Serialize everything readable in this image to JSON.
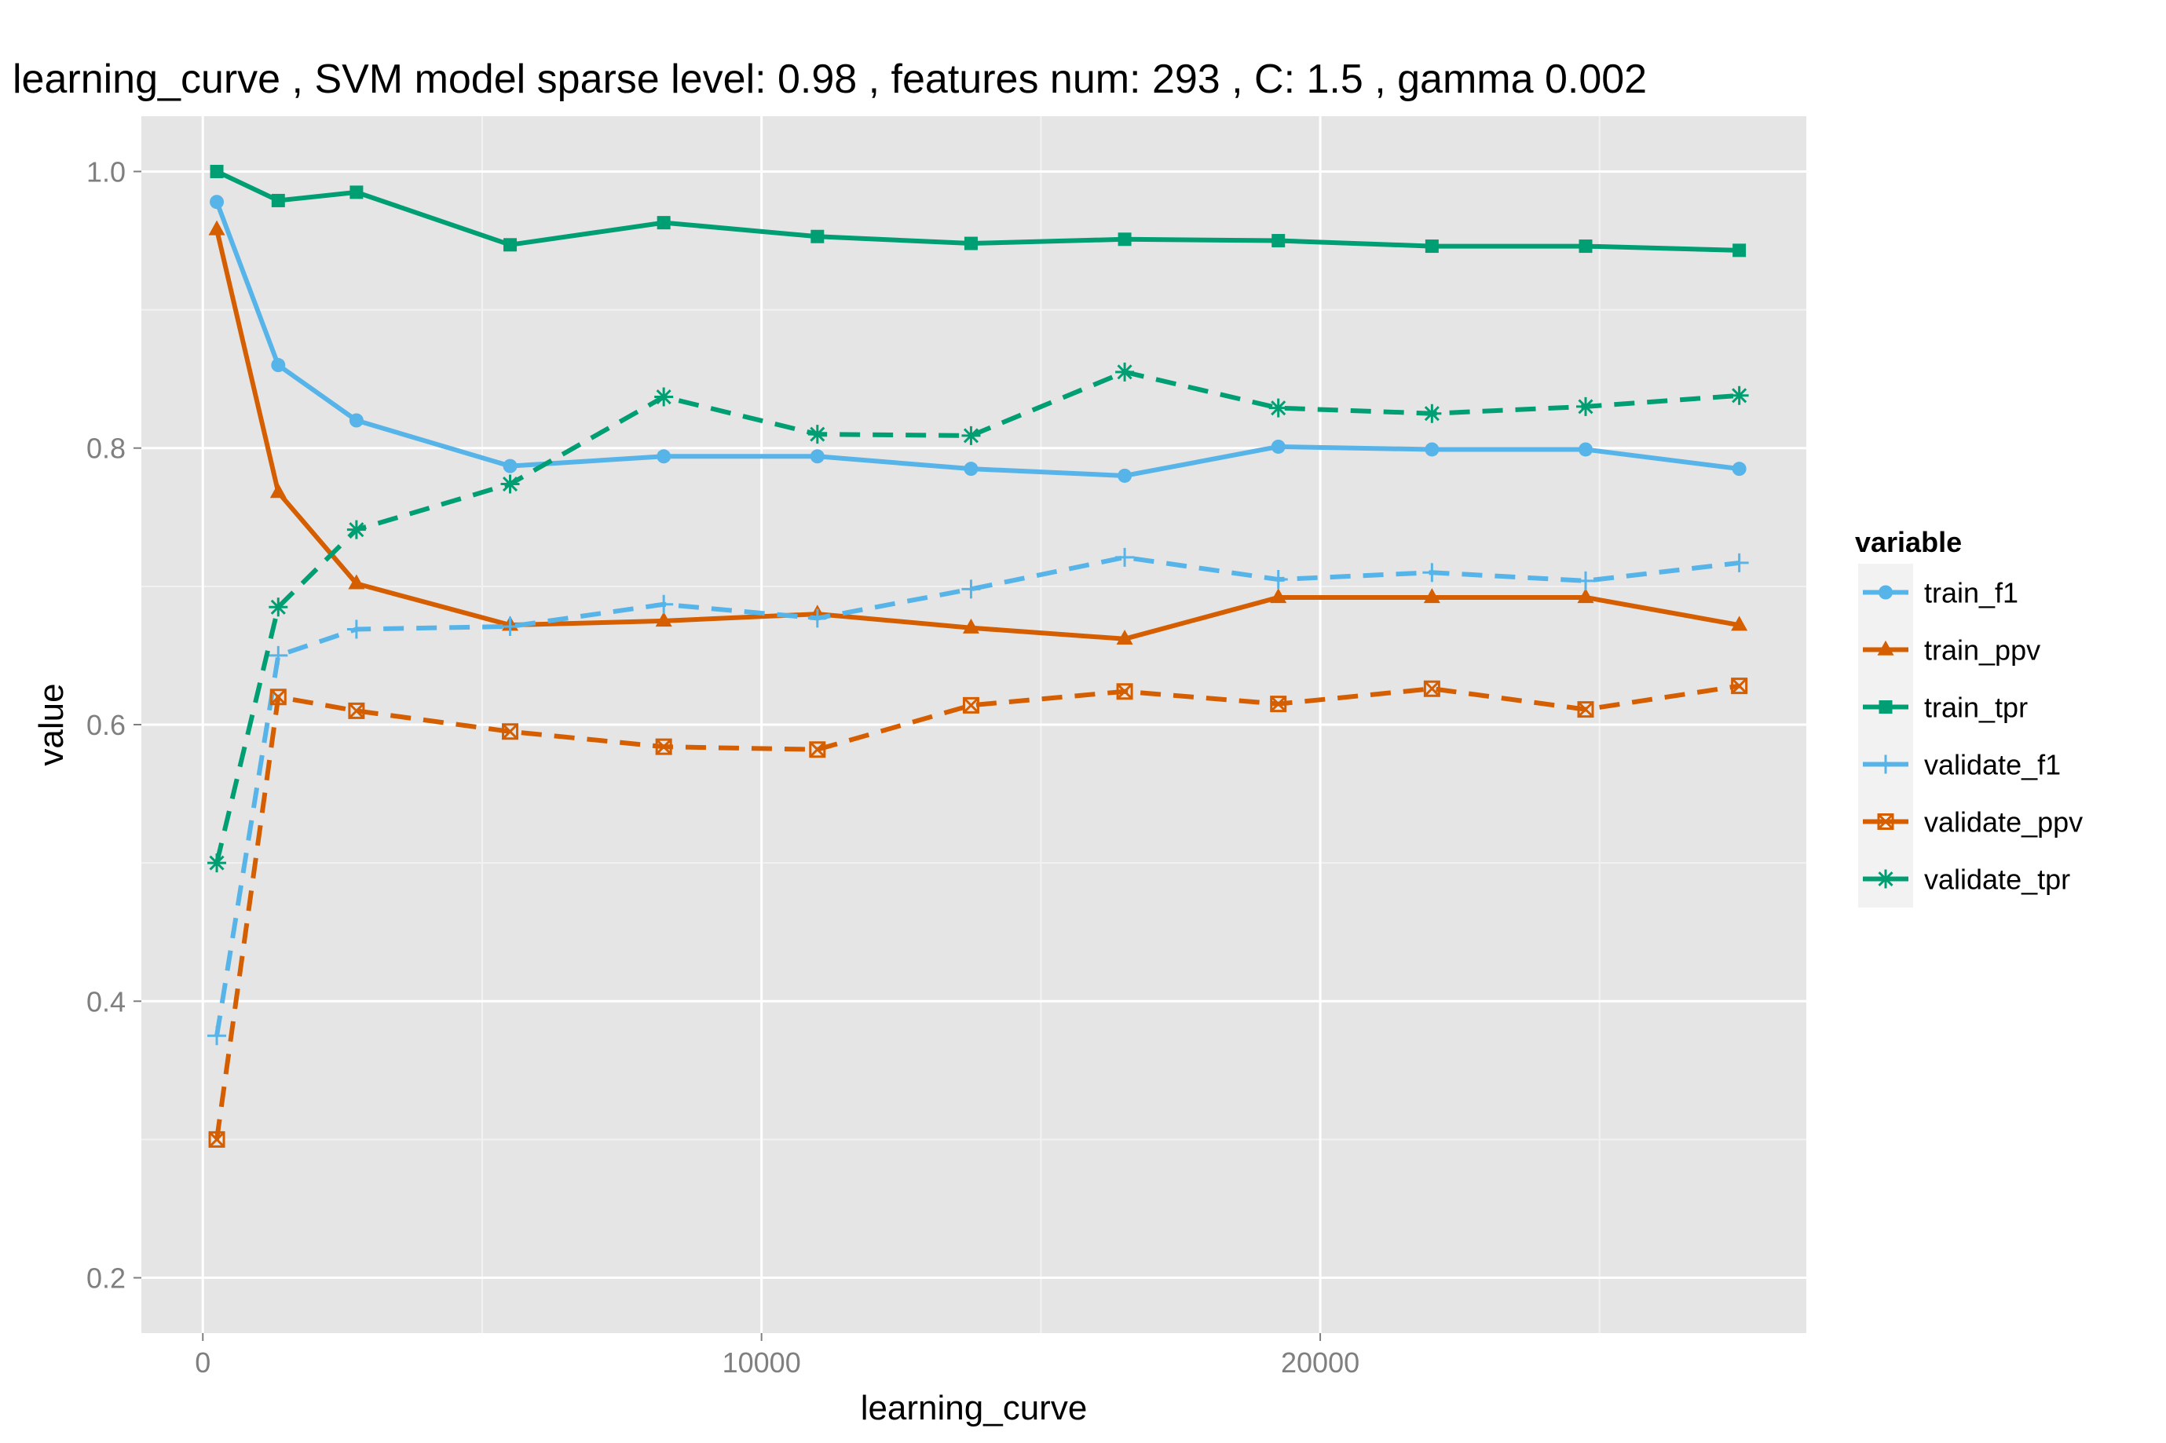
{
  "chart_data": {
    "type": "line",
    "title": "learning_curve ,  SVM model sparse level: 0.98 , features num: 293 , C:  1.5 , gamma 0.002",
    "xlabel": "learning_curve",
    "ylabel": "value",
    "xlim": [
      -1100,
      28700
    ],
    "ylim": [
      0.16,
      1.04
    ],
    "xticks": [
      0,
      10000,
      20000
    ],
    "xtick_labels": [
      "0",
      "10000",
      "20000"
    ],
    "yticks": [
      0.2,
      0.4,
      0.6,
      0.8,
      1.0
    ],
    "ytick_labels": [
      "0.2",
      "0.4",
      "0.6",
      "0.8",
      "1.0"
    ],
    "grid": true,
    "legend": {
      "title": "variable",
      "position": "right"
    },
    "x": [
      250,
      1350,
      2750,
      5500,
      8250,
      11000,
      13750,
      16500,
      19250,
      22000,
      24750,
      27500
    ],
    "series": [
      {
        "name": "train_f1",
        "color": "#56B4E9",
        "dash": "solid",
        "marker": "circle",
        "values": [
          0.978,
          0.86,
          0.82,
          0.787,
          0.794,
          0.794,
          0.785,
          0.78,
          0.801,
          0.799,
          0.799,
          0.785
        ]
      },
      {
        "name": "train_ppv",
        "color": "#D55E00",
        "dash": "solid",
        "marker": "triangle",
        "values": [
          0.958,
          0.768,
          0.702,
          0.672,
          0.675,
          0.68,
          0.67,
          0.662,
          0.692,
          0.692,
          0.692,
          0.672
        ]
      },
      {
        "name": "train_tpr",
        "color": "#009E73",
        "dash": "solid",
        "marker": "square",
        "values": [
          1.0,
          0.979,
          0.985,
          0.947,
          0.963,
          0.953,
          0.948,
          0.951,
          0.95,
          0.946,
          0.946,
          0.943
        ]
      },
      {
        "name": "validate_f1",
        "color": "#56B4E9",
        "dash": "dashed",
        "marker": "plus",
        "values": [
          0.375,
          0.65,
          0.669,
          0.671,
          0.687,
          0.677,
          0.698,
          0.721,
          0.705,
          0.71,
          0.704,
          0.717
        ]
      },
      {
        "name": "validate_ppv",
        "color": "#D55E00",
        "dash": "dashed",
        "marker": "boxx",
        "values": [
          0.3,
          0.62,
          0.61,
          0.595,
          0.584,
          0.582,
          0.614,
          0.624,
          0.615,
          0.626,
          0.611,
          0.628
        ]
      },
      {
        "name": "validate_tpr",
        "color": "#009E73",
        "dash": "dashed",
        "marker": "asterisk",
        "values": [
          0.5,
          0.685,
          0.741,
          0.774,
          0.837,
          0.81,
          0.809,
          0.855,
          0.829,
          0.825,
          0.83,
          0.838
        ]
      }
    ]
  }
}
